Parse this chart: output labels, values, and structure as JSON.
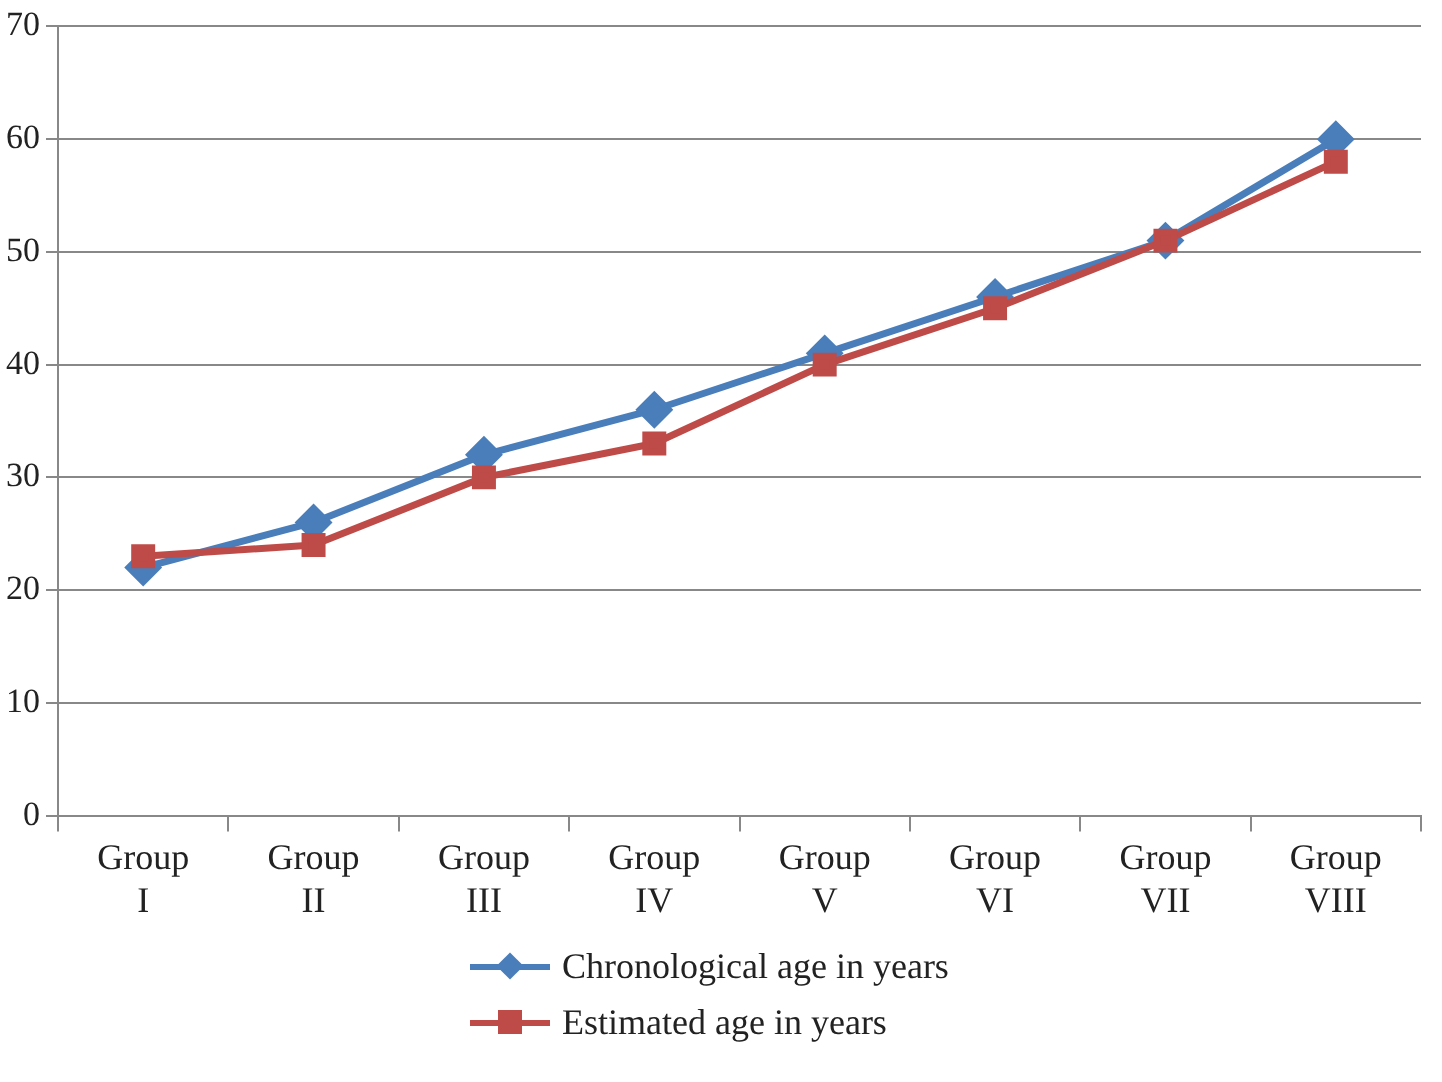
{
  "chart_data": {
    "type": "line",
    "categories": [
      "Group I",
      "Group II",
      "Group III",
      "Group IV",
      "Group V",
      "Group VI",
      "Group VII",
      "Group VIII"
    ],
    "series": [
      {
        "name": "Chronological age in years",
        "color": "#4a7ebb",
        "marker": "diamond",
        "values": [
          22,
          26,
          32,
          36,
          41,
          46,
          51,
          60
        ]
      },
      {
        "name": "Estimated age in years",
        "color": "#be4b48",
        "marker": "square",
        "values": [
          23,
          24,
          30,
          33,
          40,
          45,
          51,
          58
        ]
      }
    ],
    "ylim": [
      0,
      70
    ],
    "yticks": [
      0,
      10,
      20,
      30,
      40,
      50,
      60,
      70
    ],
    "grid": "y",
    "legend": "bottom",
    "line_style": "solid"
  }
}
